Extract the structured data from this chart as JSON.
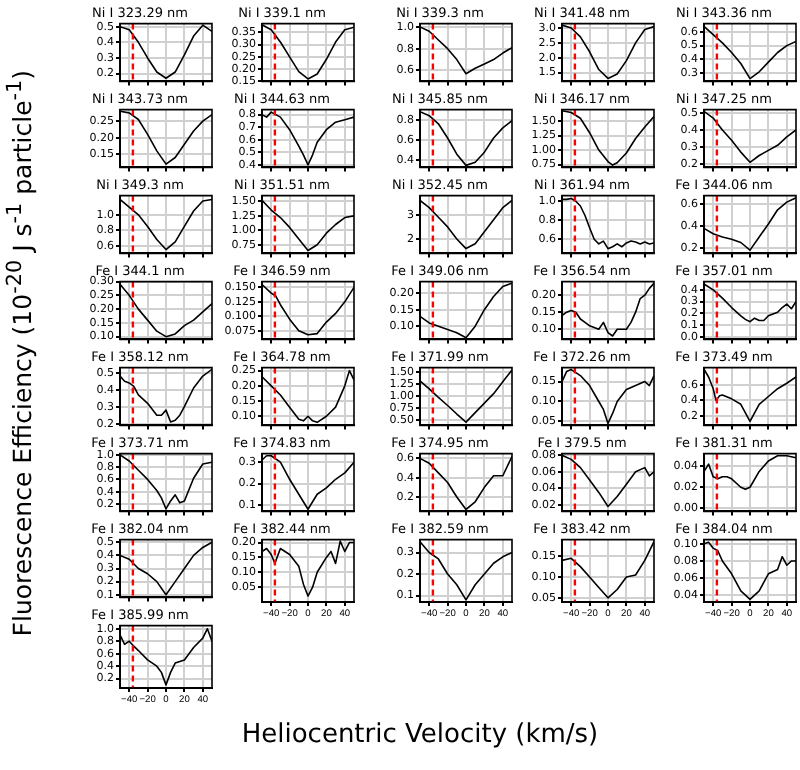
{
  "chart_data": [
    {
      "type": "line",
      "title": "Ni I 323.29 nm",
      "xlabel": "Heliocentric Velocity (km/s)",
      "ylabel": "Fluorescence Efficiency (10$^{-20}$ J s$^{-1}$ particle$^{-1}$)",
      "x": [
        -50,
        -40,
        -30,
        -20,
        -10,
        0,
        10,
        20,
        30,
        40,
        50
      ],
      "values": [
        0.5,
        0.48,
        0.4,
        0.3,
        0.21,
        0.17,
        0.21,
        0.32,
        0.44,
        0.51,
        0.47
      ],
      "color": "#000000",
      "xlim": [
        -50,
        50
      ],
      "xticks": [
        -40,
        -20,
        0,
        20,
        40
      ],
      "ylim": [
        0.15,
        0.52
      ],
      "yticks": [
        0.2,
        0.3,
        0.4,
        0.5
      ],
      "grid": true,
      "tick_labels": "y",
      "ref_lines": [
        {
          "axis": "x",
          "value": -36,
          "color": "#ff0000",
          "line_style": "dashed"
        }
      ]
    },
    {
      "type": "line",
      "title": "Ni I 339.1 nm",
      "x": [
        -50,
        -40,
        -30,
        -20,
        -10,
        0,
        10,
        20,
        30,
        40,
        50
      ],
      "values": [
        0.38,
        0.36,
        0.31,
        0.25,
        0.19,
        0.16,
        0.18,
        0.24,
        0.31,
        0.36,
        0.37
      ],
      "color": "#000000",
      "xlim": [
        -50,
        50
      ],
      "xticks": [
        -40,
        -20,
        0,
        20,
        40
      ],
      "ylim": [
        0.15,
        0.385
      ],
      "yticks": [
        0.15,
        {
          "value": 0.2,
          "label": "0.20"
        },
        0.25,
        {
          "value": 0.3,
          "label": "0.30"
        },
        0.35
      ],
      "grid": true,
      "tick_labels": "y",
      "ref_lines": [
        {
          "axis": "x",
          "value": -36,
          "color": "#ff0000",
          "line_style": "dashed"
        }
      ]
    },
    {
      "type": "line",
      "title": "Ni I 339.3 nm",
      "x": [
        -50,
        -40,
        -30,
        -20,
        -10,
        0,
        10,
        20,
        30,
        40,
        50
      ],
      "values": [
        1.0,
        0.96,
        0.88,
        0.8,
        0.7,
        0.57,
        0.62,
        0.66,
        0.7,
        0.76,
        0.81
      ],
      "color": "#000000",
      "xlim": [
        -50,
        50
      ],
      "xticks": [
        -40,
        -20,
        0,
        20,
        40
      ],
      "ylim": [
        0.5,
        1.03
      ],
      "yticks": [
        0.6,
        0.8,
        {
          "value": 1,
          "label": "1.0"
        }
      ],
      "grid": true,
      "tick_labels": "y",
      "ref_lines": [
        {
          "axis": "x",
          "value": -36,
          "color": "#ff0000",
          "line_style": "dashed"
        }
      ]
    },
    {
      "type": "line",
      "title": "Ni I 341.48 nm",
      "x": [
        -50,
        -40,
        -30,
        -20,
        -10,
        0,
        10,
        20,
        30,
        40,
        50
      ],
      "values": [
        3.1,
        3.0,
        2.7,
        2.2,
        1.6,
        1.3,
        1.45,
        1.9,
        2.5,
        2.95,
        3.05
      ],
      "color": "#000000",
      "xlim": [
        -50,
        50
      ],
      "xticks": [
        -40,
        -20,
        0,
        20,
        40
      ],
      "ylim": [
        1.2,
        3.15
      ],
      "yticks": [
        1.5,
        {
          "value": 2,
          "label": "2.0"
        },
        2.5,
        {
          "value": 3,
          "label": "3.0"
        }
      ],
      "grid": true,
      "tick_labels": "y",
      "ref_lines": [
        {
          "axis": "x",
          "value": -36,
          "color": "#ff0000",
          "line_style": "dashed"
        }
      ]
    },
    {
      "type": "line",
      "title": "Ni I 343.36 nm",
      "x": [
        -50,
        -40,
        -30,
        -20,
        -10,
        0,
        10,
        20,
        30,
        40,
        50
      ],
      "values": [
        0.64,
        0.58,
        0.52,
        0.45,
        0.37,
        0.26,
        0.31,
        0.38,
        0.45,
        0.5,
        0.53
      ],
      "color": "#000000",
      "xlim": [
        -50,
        50
      ],
      "xticks": [
        -40,
        -20,
        0,
        20,
        40
      ],
      "ylim": [
        0.24,
        0.66
      ],
      "yticks": [
        0.3,
        0.4,
        0.5,
        0.6
      ],
      "grid": true,
      "tick_labels": "y",
      "ref_lines": [
        {
          "axis": "x",
          "value": -36,
          "color": "#ff0000",
          "line_style": "dashed"
        }
      ]
    },
    {
      "type": "line",
      "title": "Ni I 343.73 nm",
      "x": [
        -50,
        -40,
        -30,
        -20,
        -10,
        0,
        10,
        20,
        30,
        40,
        50
      ],
      "values": [
        0.28,
        0.275,
        0.255,
        0.21,
        0.16,
        0.12,
        0.14,
        0.18,
        0.22,
        0.25,
        0.27
      ],
      "color": "#000000",
      "xlim": [
        -50,
        50
      ],
      "xticks": [
        -40,
        -20,
        0,
        20,
        40
      ],
      "ylim": [
        0.11,
        0.285
      ],
      "yticks": [
        0.15,
        {
          "value": 0.2,
          "label": "0.20"
        },
        0.25
      ],
      "grid": true,
      "tick_labels": "y",
      "ref_lines": [
        {
          "axis": "x",
          "value": -36,
          "color": "#ff0000",
          "line_style": "dashed"
        }
      ]
    },
    {
      "type": "line",
      "title": "Ni I 344.63 nm",
      "x": [
        -50,
        -45,
        -40,
        -30,
        -20,
        -10,
        -5,
        0,
        5,
        10,
        20,
        30,
        40,
        50
      ],
      "values": [
        0.8,
        0.78,
        0.82,
        0.78,
        0.68,
        0.55,
        0.48,
        0.4,
        0.48,
        0.58,
        0.68,
        0.74,
        0.76,
        0.78
      ],
      "color": "#000000",
      "xlim": [
        -50,
        50
      ],
      "xticks": [
        -40,
        -20,
        0,
        20,
        40
      ],
      "ylim": [
        0.38,
        0.84
      ],
      "yticks": [
        0.4,
        0.5,
        0.6,
        0.7,
        0.8
      ],
      "grid": true,
      "tick_labels": "y",
      "ref_lines": [
        {
          "axis": "x",
          "value": -36,
          "color": "#ff0000",
          "line_style": "dashed"
        }
      ]
    },
    {
      "type": "line",
      "title": "Ni I 345.85 nm",
      "x": [
        -50,
        -40,
        -30,
        -20,
        -10,
        0,
        10,
        20,
        30,
        40,
        50
      ],
      "values": [
        0.88,
        0.84,
        0.76,
        0.62,
        0.46,
        0.35,
        0.38,
        0.48,
        0.62,
        0.72,
        0.79
      ],
      "color": "#000000",
      "xlim": [
        -50,
        50
      ],
      "xticks": [
        -40,
        -20,
        0,
        20,
        40
      ],
      "ylim": [
        0.33,
        0.9
      ],
      "yticks": [
        0.4,
        0.6,
        0.8
      ],
      "grid": true,
      "tick_labels": "y",
      "ref_lines": [
        {
          "axis": "x",
          "value": -36,
          "color": "#ff0000",
          "line_style": "dashed"
        }
      ]
    },
    {
      "type": "line",
      "title": "Ni I 346.17 nm",
      "x": [
        -50,
        -40,
        -30,
        -20,
        -10,
        0,
        5,
        10,
        20,
        30,
        40,
        50
      ],
      "values": [
        1.68,
        1.65,
        1.55,
        1.3,
        1.0,
        0.8,
        0.74,
        0.78,
        0.95,
        1.2,
        1.4,
        1.58
      ],
      "color": "#000000",
      "xlim": [
        -50,
        50
      ],
      "xticks": [
        -40,
        -20,
        0,
        20,
        40
      ],
      "ylim": [
        0.7,
        1.7
      ],
      "yticks": [
        0.75,
        {
          "value": 1,
          "label": "1.00"
        },
        1.25,
        {
          "value": 1.5,
          "label": "1.50"
        }
      ],
      "grid": true,
      "tick_labels": "y",
      "ref_lines": [
        {
          "axis": "x",
          "value": -36,
          "color": "#ff0000",
          "line_style": "dashed"
        }
      ]
    },
    {
      "type": "line",
      "title": "Ni I 347.25 nm",
      "x": [
        -50,
        -40,
        -30,
        -20,
        -10,
        0,
        10,
        20,
        30,
        40,
        50
      ],
      "values": [
        0.51,
        0.47,
        0.4,
        0.34,
        0.27,
        0.21,
        0.25,
        0.28,
        0.31,
        0.36,
        0.4
      ],
      "color": "#000000",
      "xlim": [
        -50,
        50
      ],
      "xticks": [
        -40,
        -20,
        0,
        20,
        40
      ],
      "ylim": [
        0.18,
        0.52
      ],
      "yticks": [
        0.2,
        0.3,
        0.4,
        0.5
      ],
      "grid": true,
      "tick_labels": "y",
      "ref_lines": [
        {
          "axis": "x",
          "value": -36,
          "color": "#ff0000",
          "line_style": "dashed"
        }
      ]
    },
    {
      "type": "line",
      "title": "Ni I 349.3 nm",
      "x": [
        -50,
        -40,
        -30,
        -20,
        -10,
        0,
        10,
        20,
        30,
        40,
        50
      ],
      "values": [
        1.2,
        1.1,
        1.0,
        0.85,
        0.68,
        0.55,
        0.65,
        0.85,
        1.05,
        1.18,
        1.2
      ],
      "color": "#000000",
      "xlim": [
        -50,
        50
      ],
      "xticks": [
        -40,
        -20,
        0,
        20,
        40
      ],
      "ylim": [
        0.5,
        1.25
      ],
      "yticks": [
        0.6,
        0.8,
        {
          "value": 1,
          "label": "1.0"
        }
      ],
      "grid": true,
      "tick_labels": "y",
      "ref_lines": [
        {
          "axis": "x",
          "value": -36,
          "color": "#ff0000",
          "line_style": "dashed"
        }
      ]
    },
    {
      "type": "line",
      "title": "Ni I 351.51 nm",
      "x": [
        -50,
        -40,
        -30,
        -20,
        -10,
        0,
        10,
        20,
        30,
        40,
        50
      ],
      "values": [
        1.52,
        1.35,
        1.22,
        1.05,
        0.85,
        0.65,
        0.75,
        0.95,
        1.1,
        1.22,
        1.25
      ],
      "color": "#000000",
      "xlim": [
        -50,
        50
      ],
      "xticks": [
        -40,
        -20,
        0,
        20,
        40
      ],
      "ylim": [
        0.6,
        1.6
      ],
      "yticks": [
        0.75,
        {
          "value": 1,
          "label": "1.00"
        },
        1.25,
        {
          "value": 1.5,
          "label": "1.50"
        }
      ],
      "grid": true,
      "tick_labels": "y",
      "ref_lines": [
        {
          "axis": "x",
          "value": -36,
          "color": "#ff0000",
          "line_style": "dashed"
        }
      ]
    },
    {
      "type": "line",
      "title": "Ni I 352.45 nm",
      "x": [
        -50,
        -40,
        -30,
        -20,
        -10,
        0,
        10,
        20,
        30,
        40,
        50
      ],
      "values": [
        3.6,
        3.3,
        2.9,
        2.5,
        2.0,
        1.6,
        1.8,
        2.3,
        2.8,
        3.3,
        3.6
      ],
      "color": "#000000",
      "xlim": [
        -50,
        50
      ],
      "xticks": [
        -40,
        -20,
        0,
        20,
        40
      ],
      "ylim": [
        1.4,
        3.8
      ],
      "yticks": [
        2,
        3
      ],
      "grid": true,
      "tick_labels": "y",
      "ref_lines": [
        {
          "axis": "x",
          "value": -36,
          "color": "#ff0000",
          "line_style": "dashed"
        }
      ]
    },
    {
      "type": "line",
      "title": "Ni I 361.94 nm",
      "x": [
        -50,
        -45,
        -40,
        -35,
        -30,
        -25,
        -20,
        -15,
        -10,
        -5,
        0,
        5,
        10,
        15,
        20,
        25,
        30,
        35,
        40,
        45,
        50
      ],
      "values": [
        1.02,
        1.02,
        1.03,
        1.0,
        0.95,
        0.85,
        0.72,
        0.6,
        0.55,
        0.58,
        0.5,
        0.52,
        0.55,
        0.52,
        0.56,
        0.58,
        0.57,
        0.55,
        0.57,
        0.55,
        0.56
      ],
      "color": "#000000",
      "xlim": [
        -50,
        50
      ],
      "xticks": [
        -40,
        -20,
        0,
        20,
        40
      ],
      "ylim": [
        0.45,
        1.06
      ],
      "yticks": [
        0.6,
        0.8,
        {
          "value": 1,
          "label": "1.0"
        }
      ],
      "grid": true,
      "tick_labels": "y",
      "ref_lines": [
        {
          "axis": "x",
          "value": -36,
          "color": "#ff0000",
          "line_style": "dashed"
        }
      ]
    },
    {
      "type": "line",
      "title": "Fe I 344.06 nm",
      "x": [
        -50,
        -40,
        -30,
        -20,
        -10,
        0,
        10,
        20,
        30,
        40,
        50
      ],
      "values": [
        0.38,
        0.33,
        0.3,
        0.28,
        0.25,
        0.18,
        0.3,
        0.42,
        0.55,
        0.62,
        0.66
      ],
      "color": "#000000",
      "xlim": [
        -50,
        50
      ],
      "xticks": [
        -40,
        -20,
        0,
        20,
        40
      ],
      "ylim": [
        0.15,
        0.68
      ],
      "yticks": [
        0.2,
        0.4,
        0.6
      ],
      "grid": true,
      "tick_labels": "y",
      "ref_lines": [
        {
          "axis": "x",
          "value": -36,
          "color": "#ff0000",
          "line_style": "dashed"
        }
      ]
    },
    {
      "type": "line",
      "title": "Fe I 344.1 nm",
      "x": [
        -50,
        -40,
        -30,
        -20,
        -10,
        0,
        10,
        20,
        30,
        40,
        50
      ],
      "values": [
        0.29,
        0.25,
        0.2,
        0.16,
        0.12,
        0.1,
        0.11,
        0.14,
        0.16,
        0.19,
        0.22
      ],
      "color": "#000000",
      "xlim": [
        -50,
        50
      ],
      "xticks": [
        -40,
        -20,
        0,
        20,
        40
      ],
      "ylim": [
        0.09,
        0.3
      ],
      "yticks": [
        {
          "value": 0.1,
          "label": "0.10"
        },
        0.15,
        {
          "value": 0.2,
          "label": "0.20"
        },
        0.25,
        {
          "value": 0.3,
          "label": "0.30"
        }
      ],
      "grid": true,
      "tick_labels": "y",
      "ref_lines": [
        {
          "axis": "x",
          "value": -36,
          "color": "#ff0000",
          "line_style": "dashed"
        }
      ]
    },
    {
      "type": "line",
      "title": "Fe I 346.59 nm",
      "x": [
        -50,
        -40,
        -35,
        -30,
        -20,
        -10,
        0,
        10,
        20,
        30,
        40,
        50
      ],
      "values": [
        0.155,
        0.14,
        0.135,
        0.12,
        0.095,
        0.075,
        0.068,
        0.07,
        0.09,
        0.105,
        0.125,
        0.15
      ],
      "color": "#000000",
      "xlim": [
        -50,
        50
      ],
      "xticks": [
        -40,
        -20,
        0,
        20,
        40
      ],
      "ylim": [
        0.06,
        0.16
      ],
      "yticks": [
        0.075,
        {
          "value": 0.1,
          "label": "0.100"
        },
        0.125,
        {
          "value": 0.15,
          "label": "0.150"
        }
      ],
      "grid": true,
      "tick_labels": "y",
      "ref_lines": [
        {
          "axis": "x",
          "value": -36,
          "color": "#ff0000",
          "line_style": "dashed"
        }
      ]
    },
    {
      "type": "line",
      "title": "Fe I 349.06 nm",
      "x": [
        -50,
        -40,
        -30,
        -20,
        -10,
        0,
        10,
        20,
        30,
        40,
        50
      ],
      "values": [
        0.13,
        0.11,
        0.1,
        0.09,
        0.08,
        0.065,
        0.1,
        0.15,
        0.19,
        0.22,
        0.23
      ],
      "color": "#000000",
      "xlim": [
        -50,
        50
      ],
      "xticks": [
        -40,
        -20,
        0,
        20,
        40
      ],
      "ylim": [
        0.06,
        0.235
      ],
      "yticks": [
        {
          "value": 0.1,
          "label": "0.10"
        },
        0.15,
        {
          "value": 0.2,
          "label": "0.20"
        }
      ],
      "grid": true,
      "tick_labels": "y",
      "ref_lines": [
        {
          "axis": "x",
          "value": -36,
          "color": "#ff0000",
          "line_style": "dashed"
        }
      ]
    },
    {
      "type": "line",
      "title": "Fe I 356.54 nm",
      "x": [
        -50,
        -45,
        -40,
        -35,
        -30,
        -25,
        -20,
        -15,
        -10,
        -5,
        0,
        5,
        10,
        15,
        20,
        25,
        30,
        35,
        40,
        45,
        50
      ],
      "values": [
        0.14,
        0.15,
        0.155,
        0.15,
        0.13,
        0.12,
        0.11,
        0.105,
        0.1,
        0.12,
        0.09,
        0.08,
        0.1,
        0.1,
        0.1,
        0.12,
        0.15,
        0.19,
        0.2,
        0.22,
        0.235
      ],
      "color": "#000000",
      "xlim": [
        -50,
        50
      ],
      "xticks": [
        -40,
        -20,
        0,
        20,
        40
      ],
      "ylim": [
        0.07,
        0.24
      ],
      "yticks": [
        {
          "value": 0.1,
          "label": "0.10"
        },
        0.15,
        {
          "value": 0.2,
          "label": "0.20"
        }
      ],
      "grid": true,
      "tick_labels": "y",
      "ref_lines": [
        {
          "axis": "x",
          "value": -36,
          "color": "#ff0000",
          "line_style": "dashed"
        }
      ]
    },
    {
      "type": "line",
      "title": "Fe I 357.01 nm",
      "x": [
        -50,
        -40,
        -30,
        -20,
        -10,
        -5,
        0,
        5,
        10,
        15,
        20,
        30,
        35,
        40,
        45,
        50
      ],
      "values": [
        0.45,
        0.4,
        0.33,
        0.25,
        0.18,
        0.15,
        0.13,
        0.16,
        0.14,
        0.14,
        0.18,
        0.21,
        0.25,
        0.28,
        0.24,
        0.3
      ],
      "color": "#000000",
      "xlim": [
        -50,
        50
      ],
      "xticks": [
        -40,
        -20,
        0,
        20,
        40
      ],
      "ylim": [
        -0.02,
        0.47
      ],
      "yticks": [
        {
          "value": 0,
          "label": "0.0"
        },
        0.1,
        0.2,
        0.3,
        0.4
      ],
      "grid": true,
      "tick_labels": "y",
      "ref_lines": [
        {
          "axis": "x",
          "value": -36,
          "color": "#ff0000",
          "line_style": "dashed"
        }
      ]
    },
    {
      "type": "line",
      "title": "Fe I 358.12 nm",
      "x": [
        -50,
        -45,
        -40,
        -35,
        -30,
        -20,
        -10,
        -5,
        0,
        5,
        10,
        15,
        20,
        30,
        40,
        50
      ],
      "values": [
        0.48,
        0.45,
        0.44,
        0.42,
        0.37,
        0.32,
        0.25,
        0.25,
        0.28,
        0.21,
        0.22,
        0.25,
        0.3,
        0.41,
        0.48,
        0.52
      ],
      "color": "#000000",
      "xlim": [
        -50,
        50
      ],
      "xticks": [
        -40,
        -20,
        0,
        20,
        40
      ],
      "ylim": [
        0.19,
        0.53
      ],
      "yticks": [
        0.2,
        0.3,
        0.4,
        0.5
      ],
      "grid": true,
      "tick_labels": "y",
      "ref_lines": [
        {
          "axis": "x",
          "value": -36,
          "color": "#ff0000",
          "line_style": "dashed"
        }
      ]
    },
    {
      "type": "line",
      "title": "Fe I 364.78 nm",
      "x": [
        -50,
        -40,
        -30,
        -20,
        -10,
        -5,
        0,
        5,
        10,
        20,
        30,
        40,
        45,
        50
      ],
      "values": [
        0.23,
        0.2,
        0.17,
        0.13,
        0.09,
        0.085,
        0.1,
        0.085,
        0.08,
        0.1,
        0.13,
        0.2,
        0.25,
        0.22
      ],
      "color": "#000000",
      "xlim": [
        -50,
        50
      ],
      "xticks": [
        -40,
        -20,
        0,
        20,
        40
      ],
      "ylim": [
        0.07,
        0.26
      ],
      "yticks": [
        {
          "value": 0.1,
          "label": "0.10"
        },
        0.15,
        {
          "value": 0.2,
          "label": "0.20"
        },
        0.25
      ],
      "grid": true,
      "tick_labels": "y",
      "ref_lines": [
        {
          "axis": "x",
          "value": -36,
          "color": "#ff0000",
          "line_style": "dashed"
        }
      ]
    },
    {
      "type": "line",
      "title": "Fe I 371.99 nm",
      "x": [
        -50,
        -40,
        -30,
        -20,
        -10,
        0,
        10,
        20,
        30,
        40,
        50
      ],
      "values": [
        1.32,
        1.15,
        0.97,
        0.8,
        0.62,
        0.45,
        0.65,
        0.85,
        1.05,
        1.3,
        1.55
      ],
      "color": "#000000",
      "xlim": [
        -50,
        50
      ],
      "xticks": [
        -40,
        -20,
        0,
        20,
        40
      ],
      "ylim": [
        0.38,
        1.6
      ],
      "yticks": [
        {
          "value": 0.5,
          "label": "0.50"
        },
        0.75,
        {
          "value": 1,
          "label": "1.00"
        },
        1.25,
        {
          "value": 1.5,
          "label": "1.50"
        }
      ],
      "grid": true,
      "tick_labels": "y",
      "ref_lines": [
        {
          "axis": "x",
          "value": -36,
          "color": "#ff0000",
          "line_style": "dashed"
        }
      ]
    },
    {
      "type": "line",
      "title": "Fe I 372.26 nm",
      "x": [
        -50,
        -45,
        -40,
        -30,
        -20,
        -10,
        -5,
        0,
        5,
        10,
        20,
        30,
        40,
        45,
        50
      ],
      "values": [
        0.15,
        0.175,
        0.18,
        0.165,
        0.14,
        0.1,
        0.08,
        0.045,
        0.07,
        0.1,
        0.13,
        0.14,
        0.15,
        0.14,
        0.165
      ],
      "color": "#000000",
      "xlim": [
        -50,
        50
      ],
      "xticks": [
        -40,
        -20,
        0,
        20,
        40
      ],
      "ylim": [
        0.04,
        0.185
      ],
      "yticks": [
        0.05,
        {
          "value": 0.1,
          "label": "0.10"
        },
        0.15
      ],
      "grid": true,
      "tick_labels": "y",
      "ref_lines": [
        {
          "axis": "x",
          "value": -36,
          "color": "#ff0000",
          "line_style": "dashed"
        }
      ]
    },
    {
      "type": "line",
      "title": "Fe I 373.49 nm",
      "x": [
        -50,
        -45,
        -40,
        -37,
        -33,
        -30,
        -20,
        -10,
        0,
        10,
        20,
        30,
        40,
        50
      ],
      "values": [
        0.8,
        0.7,
        0.55,
        0.4,
        0.46,
        0.47,
        0.42,
        0.35,
        0.13,
        0.35,
        0.45,
        0.55,
        0.62,
        0.7
      ],
      "color": "#000000",
      "xlim": [
        -50,
        50
      ],
      "xticks": [
        -40,
        -20,
        0,
        20,
        40
      ],
      "ylim": [
        0.08,
        0.82
      ],
      "yticks": [
        0.2,
        0.4,
        0.6
      ],
      "grid": true,
      "tick_labels": "y",
      "ref_lines": [
        {
          "axis": "x",
          "value": -36,
          "color": "#ff0000",
          "line_style": "dashed"
        }
      ]
    },
    {
      "type": "line",
      "title": "Fe I 373.71 nm",
      "x": [
        -50,
        -40,
        -30,
        -20,
        -10,
        -5,
        0,
        5,
        10,
        15,
        20,
        30,
        40,
        50
      ],
      "values": [
        1.0,
        0.9,
        0.75,
        0.6,
        0.42,
        0.3,
        0.12,
        0.25,
        0.35,
        0.22,
        0.25,
        0.62,
        0.85,
        0.88
      ],
      "color": "#000000",
      "xlim": [
        -50,
        50
      ],
      "xticks": [
        -40,
        -20,
        0,
        20,
        40
      ],
      "ylim": [
        0.08,
        1.02
      ],
      "yticks": [
        0.2,
        0.4,
        0.6,
        0.8,
        {
          "value": 1,
          "label": "1.0"
        }
      ],
      "grid": true,
      "tick_labels": "y",
      "ref_lines": [
        {
          "axis": "x",
          "value": -36,
          "color": "#ff0000",
          "line_style": "dashed"
        }
      ]
    },
    {
      "type": "line",
      "title": "Fe I 374.83 nm",
      "x": [
        -50,
        -45,
        -40,
        -30,
        -20,
        -10,
        0,
        10,
        20,
        30,
        40,
        50
      ],
      "values": [
        0.31,
        0.33,
        0.33,
        0.3,
        0.22,
        0.15,
        0.08,
        0.15,
        0.18,
        0.22,
        0.25,
        0.3
      ],
      "color": "#000000",
      "xlim": [
        -50,
        50
      ],
      "xticks": [
        -40,
        -20,
        0,
        20,
        40
      ],
      "ylim": [
        0.07,
        0.34
      ],
      "yticks": [
        0.1,
        0.2,
        0.3
      ],
      "grid": true,
      "tick_labels": "y",
      "ref_lines": [
        {
          "axis": "x",
          "value": -36,
          "color": "#ff0000",
          "line_style": "dashed"
        }
      ]
    },
    {
      "type": "line",
      "title": "Fe I 374.95 nm",
      "x": [
        -50,
        -40,
        -30,
        -20,
        -10,
        0,
        10,
        20,
        30,
        40,
        50
      ],
      "values": [
        0.6,
        0.55,
        0.45,
        0.35,
        0.2,
        0.07,
        0.15,
        0.3,
        0.42,
        0.42,
        0.62
      ],
      "color": "#000000",
      "xlim": [
        -50,
        50
      ],
      "xticks": [
        -40,
        -20,
        0,
        20,
        40
      ],
      "ylim": [
        0.05,
        0.65
      ],
      "yticks": [
        0.2,
        0.4,
        0.6
      ],
      "grid": true,
      "tick_labels": "y",
      "ref_lines": [
        {
          "axis": "x",
          "value": -36,
          "color": "#ff0000",
          "line_style": "dashed"
        }
      ]
    },
    {
      "type": "line",
      "title": "Fe I 379.5 nm",
      "x": [
        -50,
        -40,
        -30,
        -20,
        -10,
        0,
        10,
        20,
        30,
        40,
        45,
        50
      ],
      "values": [
        0.08,
        0.075,
        0.065,
        0.05,
        0.035,
        0.018,
        0.03,
        0.045,
        0.06,
        0.065,
        0.055,
        0.06
      ],
      "color": "#000000",
      "xlim": [
        -50,
        50
      ],
      "xticks": [
        -40,
        -20,
        0,
        20,
        40
      ],
      "ylim": [
        0.012,
        0.082
      ],
      "yticks": [
        0.02,
        0.04,
        0.06,
        0.08
      ],
      "grid": true,
      "tick_labels": "y",
      "ref_lines": [
        {
          "axis": "x",
          "value": -36,
          "color": "#ff0000",
          "line_style": "dashed"
        }
      ]
    },
    {
      "type": "line",
      "title": "Fe I 381.31 nm",
      "x": [
        -50,
        -45,
        -40,
        -35,
        -30,
        -25,
        -20,
        -10,
        -5,
        0,
        10,
        20,
        30,
        40,
        50
      ],
      "values": [
        0.035,
        0.042,
        0.03,
        0.028,
        0.03,
        0.03,
        0.028,
        0.02,
        0.018,
        0.02,
        0.035,
        0.045,
        0.05,
        0.05,
        0.048
      ],
      "color": "#000000",
      "xlim": [
        -50,
        50
      ],
      "xticks": [
        -40,
        -20,
        0,
        20,
        40
      ],
      "ylim": [
        -0.003,
        0.052
      ],
      "yticks": [
        {
          "value": 0,
          "label": "0.00"
        },
        0.02,
        0.04
      ],
      "grid": true,
      "tick_labels": "y",
      "ref_lines": [
        {
          "axis": "x",
          "value": -36,
          "color": "#ff0000",
          "line_style": "dashed"
        }
      ]
    },
    {
      "type": "line",
      "title": "Fe I 382.04 nm",
      "x": [
        -50,
        -40,
        -30,
        -20,
        -10,
        0,
        10,
        20,
        30,
        40,
        50
      ],
      "values": [
        0.4,
        0.37,
        0.3,
        0.26,
        0.2,
        0.1,
        0.2,
        0.3,
        0.4,
        0.46,
        0.5
      ],
      "color": "#000000",
      "xlim": [
        -50,
        50
      ],
      "xticks": [
        -40,
        -20,
        0,
        20,
        40
      ],
      "ylim": [
        0.08,
        0.52
      ],
      "yticks": [
        0.1,
        0.2,
        0.3,
        0.4,
        0.5
      ],
      "grid": true,
      "tick_labels": "y",
      "ref_lines": [
        {
          "axis": "x",
          "value": -36,
          "color": "#ff0000",
          "line_style": "dashed"
        }
      ]
    },
    {
      "type": "line",
      "title": "Fe I 382.44 nm",
      "x": [
        -50,
        -45,
        -40,
        -36,
        -30,
        -20,
        -10,
        -5,
        0,
        5,
        10,
        20,
        25,
        30,
        35,
        40,
        45,
        50
      ],
      "values": [
        0.17,
        0.18,
        0.16,
        0.13,
        0.18,
        0.16,
        0.12,
        0.06,
        0.02,
        0.05,
        0.1,
        0.15,
        0.17,
        0.13,
        0.205,
        0.17,
        0.2,
        0.2
      ],
      "color": "#000000",
      "xlim": [
        -50,
        50
      ],
      "xticks": [
        -40,
        -20,
        0,
        20,
        40
      ],
      "ylim": [
        0.0,
        0.21
      ],
      "yticks": [
        0.05,
        {
          "value": 0.1,
          "label": "0.10"
        },
        0.15,
        {
          "value": 0.2,
          "label": "0.20"
        }
      ],
      "grid": true,
      "ref_lines": [
        {
          "axis": "x",
          "value": -36,
          "color": "#ff0000",
          "line_style": "dashed"
        }
      ]
    },
    {
      "type": "line",
      "title": "Fe I 382.59 nm",
      "x": [
        -50,
        -40,
        -30,
        -20,
        -10,
        0,
        10,
        20,
        30,
        40,
        50
      ],
      "values": [
        0.35,
        0.3,
        0.27,
        0.2,
        0.15,
        0.08,
        0.15,
        0.2,
        0.25,
        0.28,
        0.3
      ],
      "color": "#000000",
      "xlim": [
        -50,
        50
      ],
      "xticks": [
        -40,
        -20,
        0,
        20,
        40
      ],
      "ylim": [
        0.07,
        0.36
      ],
      "yticks": [
        0.1,
        0.2,
        0.3
      ],
      "grid": true,
      "ref_lines": [
        {
          "axis": "x",
          "value": -36,
          "color": "#ff0000",
          "line_style": "dashed"
        }
      ]
    },
    {
      "type": "line",
      "title": "Fe I 383.42 nm",
      "x": [
        -50,
        -40,
        -30,
        -20,
        -10,
        0,
        10,
        20,
        30,
        40,
        50
      ],
      "values": [
        0.14,
        0.145,
        0.125,
        0.1,
        0.075,
        0.05,
        0.07,
        0.1,
        0.105,
        0.14,
        0.185
      ],
      "color": "#000000",
      "xlim": [
        -50,
        50
      ],
      "xticks": [
        -40,
        -20,
        0,
        20,
        40
      ],
      "ylim": [
        0.04,
        0.19
      ],
      "yticks": [
        0.05,
        {
          "value": 0.1,
          "label": "0.10"
        },
        0.15
      ],
      "grid": true,
      "ref_lines": [
        {
          "axis": "x",
          "value": -36,
          "color": "#ff0000",
          "line_style": "dashed"
        }
      ]
    },
    {
      "type": "line",
      "title": "Fe I 384.04 nm",
      "x": [
        -50,
        -45,
        -40,
        -35,
        -30,
        -20,
        -10,
        0,
        10,
        20,
        30,
        35,
        40,
        45,
        50
      ],
      "values": [
        0.1,
        0.102,
        0.095,
        0.092,
        0.08,
        0.065,
        0.045,
        0.035,
        0.045,
        0.065,
        0.07,
        0.085,
        0.075,
        0.08,
        0.08
      ],
      "color": "#000000",
      "xlim": [
        -50,
        50
      ],
      "xticks": [
        -40,
        -20,
        0,
        20,
        40
      ],
      "ylim": [
        0.032,
        0.105
      ],
      "yticks": [
        0.04,
        0.06,
        0.08,
        {
          "value": 0.1,
          "label": "0.10"
        }
      ],
      "grid": true,
      "ref_lines": [
        {
          "axis": "x",
          "value": -36,
          "color": "#ff0000",
          "line_style": "dashed"
        }
      ]
    },
    {
      "type": "line",
      "title": "Fe I 385.99 nm",
      "x": [
        -50,
        -45,
        -40,
        -35,
        -30,
        -20,
        -10,
        -5,
        0,
        5,
        10,
        20,
        30,
        40,
        45,
        50
      ],
      "values": [
        0.9,
        0.75,
        0.8,
        0.72,
        0.65,
        0.5,
        0.4,
        0.3,
        0.1,
        0.3,
        0.45,
        0.5,
        0.7,
        0.85,
        1.0,
        0.8
      ],
      "color": "#000000",
      "xlim": [
        -50,
        50
      ],
      "xticks": [
        -40,
        -20,
        0,
        20,
        40
      ],
      "ylim": [
        0.05,
        1.05
      ],
      "yticks": [
        0.2,
        0.4,
        0.6,
        0.8,
        {
          "value": 1,
          "label": "1.0"
        }
      ],
      "grid": true,
      "ref_lines": [
        {
          "axis": "x",
          "value": -36,
          "color": "#ff0000",
          "line_style": "dashed"
        }
      ]
    }
  ]
}
